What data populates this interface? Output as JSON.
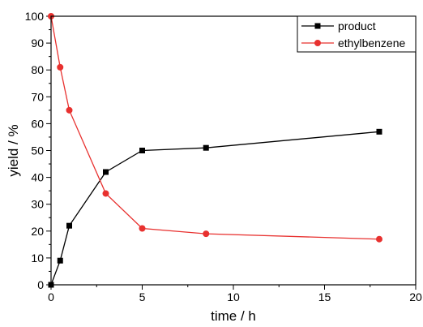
{
  "chart_data": {
    "type": "line",
    "title": "",
    "xlabel": "time / h",
    "ylabel": "yield / %",
    "xlim": [
      0,
      20
    ],
    "ylim": [
      0,
      100
    ],
    "xticks": [
      0,
      5,
      10,
      15,
      20
    ],
    "yticks": [
      0,
      10,
      20,
      30,
      40,
      50,
      60,
      70,
      80,
      90,
      100
    ],
    "grid": false,
    "legend_position": "top-right",
    "series": [
      {
        "name": "product",
        "color": "#000000",
        "marker": "square",
        "x": [
          0,
          0.5,
          1,
          3,
          5,
          8.5,
          18
        ],
        "y": [
          0,
          9,
          22,
          42,
          50,
          51,
          57
        ]
      },
      {
        "name": "ethylbenzene",
        "color": "#e8312f",
        "marker": "circle",
        "x": [
          0,
          0.5,
          1,
          3,
          5,
          8.5,
          18
        ],
        "y": [
          100,
          81,
          65,
          34,
          21,
          19,
          17
        ]
      }
    ]
  }
}
